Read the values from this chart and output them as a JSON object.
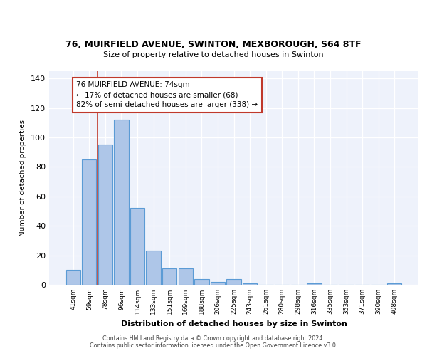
{
  "title1": "76, MUIRFIELD AVENUE, SWINTON, MEXBOROUGH, S64 8TF",
  "title2": "Size of property relative to detached houses in Swinton",
  "xlabel": "Distribution of detached houses by size in Swinton",
  "ylabel": "Number of detached properties",
  "categories": [
    "41sqm",
    "59sqm",
    "78sqm",
    "96sqm",
    "114sqm",
    "133sqm",
    "151sqm",
    "169sqm",
    "188sqm",
    "206sqm",
    "225sqm",
    "243sqm",
    "261sqm",
    "280sqm",
    "298sqm",
    "316sqm",
    "335sqm",
    "353sqm",
    "371sqm",
    "390sqm",
    "408sqm"
  ],
  "values": [
    10,
    85,
    95,
    112,
    52,
    23,
    11,
    11,
    4,
    2,
    4,
    1,
    0,
    0,
    0,
    1,
    0,
    0,
    0,
    0,
    1
  ],
  "bar_color": "#aec6e8",
  "bar_edge_color": "#5b9bd5",
  "vline_x": 1.5,
  "vline_color": "#c0392b",
  "annotation_text": "76 MUIRFIELD AVENUE: 74sqm\n← 17% of detached houses are smaller (68)\n82% of semi-detached houses are larger (338) →",
  "annotation_box_color": "#ffffff",
  "annotation_box_edge_color": "#c0392b",
  "ylim": [
    0,
    145
  ],
  "yticks": [
    0,
    20,
    40,
    60,
    80,
    100,
    120,
    140
  ],
  "footer_text": "Contains HM Land Registry data © Crown copyright and database right 2024.\nContains public sector information licensed under the Open Government Licence v3.0.",
  "bg_color": "#eef2fb",
  "grid_color": "#ffffff",
  "fig_bg": "#ffffff"
}
